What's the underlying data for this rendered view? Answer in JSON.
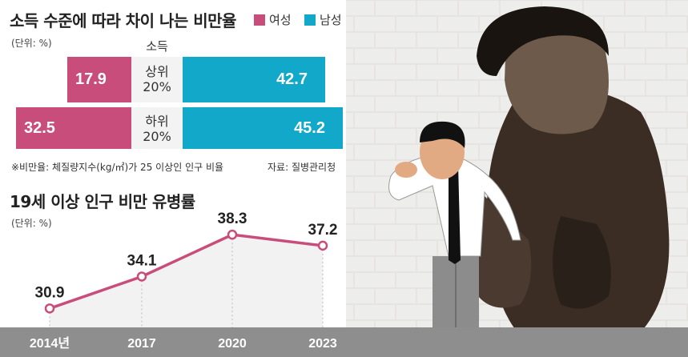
{
  "income_chart": {
    "title": "소득 수준에 따라 차이 나는 비만율",
    "unit": "(단위: %)",
    "legend": [
      {
        "name": "여성",
        "color": "#c94d7b"
      },
      {
        "name": "남성",
        "color": "#11a8c9"
      }
    ],
    "group_header": "소득",
    "note_left": "※비만율: 체질량지수(kg/㎡)가 25 이상인 인구 비율",
    "note_right": "자료: 질병관리청"
  },
  "trend_chart": {
    "title": "19세 이상 인구 비만 유병률",
    "unit": "(단위: %)"
  },
  "chart_data": [
    {
      "type": "bar",
      "orientation": "horizontal-diverging",
      "categories": [
        "상위 20%",
        "하위 20%"
      ],
      "category_lines": [
        [
          "상위",
          "20%"
        ],
        [
          "하위",
          "20%"
        ]
      ],
      "series": [
        {
          "name": "여성",
          "values": [
            17.9,
            32.5
          ],
          "color": "#c94d7b"
        },
        {
          "name": "남성",
          "values": [
            42.7,
            45.2
          ],
          "color": "#11a8c9"
        }
      ],
      "value_labels": {
        "female": [
          "17.9",
          "32.5"
        ],
        "male": [
          "42.7",
          "45.2"
        ]
      }
    },
    {
      "type": "line",
      "x": [
        "2014년",
        "2017",
        "2020",
        "2023"
      ],
      "values": [
        30.9,
        34.1,
        38.3,
        37.2
      ],
      "value_labels": [
        "30.9",
        "34.1",
        "38.3",
        "37.2"
      ],
      "ylim": [
        29,
        40
      ],
      "color": "#c94d7b"
    }
  ]
}
